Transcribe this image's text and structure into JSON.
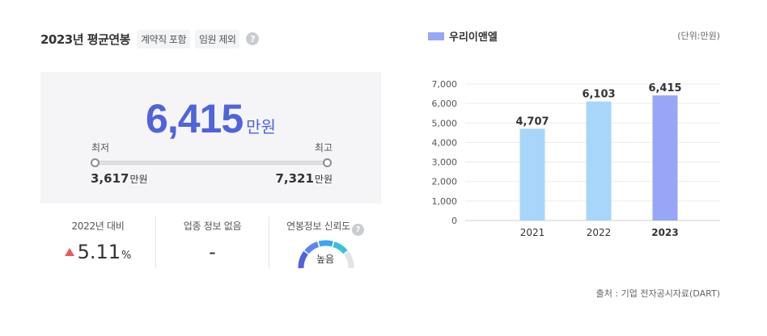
{
  "header": {
    "title": "2023년 평균연봉",
    "tags": [
      "계약직 포함",
      "임원 제외"
    ],
    "help_glyph": "?"
  },
  "summary": {
    "value": "6,415",
    "unit": "만원",
    "min_label": "최저",
    "max_label": "최고",
    "min_value": "3,617",
    "max_value": "7,321",
    "small_unit": "만원"
  },
  "stats": {
    "change_label": "2022년 대비",
    "change_value": "5.11",
    "change_unit": "%",
    "industry_label": "업종 정보 없음",
    "industry_value": "-",
    "reliability_label": "연봉정보 신뢰도",
    "reliability_value": "높음"
  },
  "chart_header": {
    "legend": "우리이앤엘",
    "unit_note": "(단위:만원)"
  },
  "chart_data": {
    "type": "bar",
    "categories": [
      "2021",
      "2022",
      "2023"
    ],
    "values": [
      4707,
      6103,
      6415
    ],
    "value_labels": [
      "4,707",
      "6,103",
      "6,415"
    ],
    "y_ticks": [
      "0",
      "1,000",
      "2,000",
      "3,000",
      "4,000",
      "5,000",
      "6,000",
      "7,000"
    ],
    "ylim": [
      0,
      7000
    ],
    "colors": [
      "#a8d6fb",
      "#a8d6fb",
      "#97a6f7"
    ],
    "grid": true
  },
  "footer": {
    "source": "출처 : 기업 전자공시자료(DART)"
  }
}
